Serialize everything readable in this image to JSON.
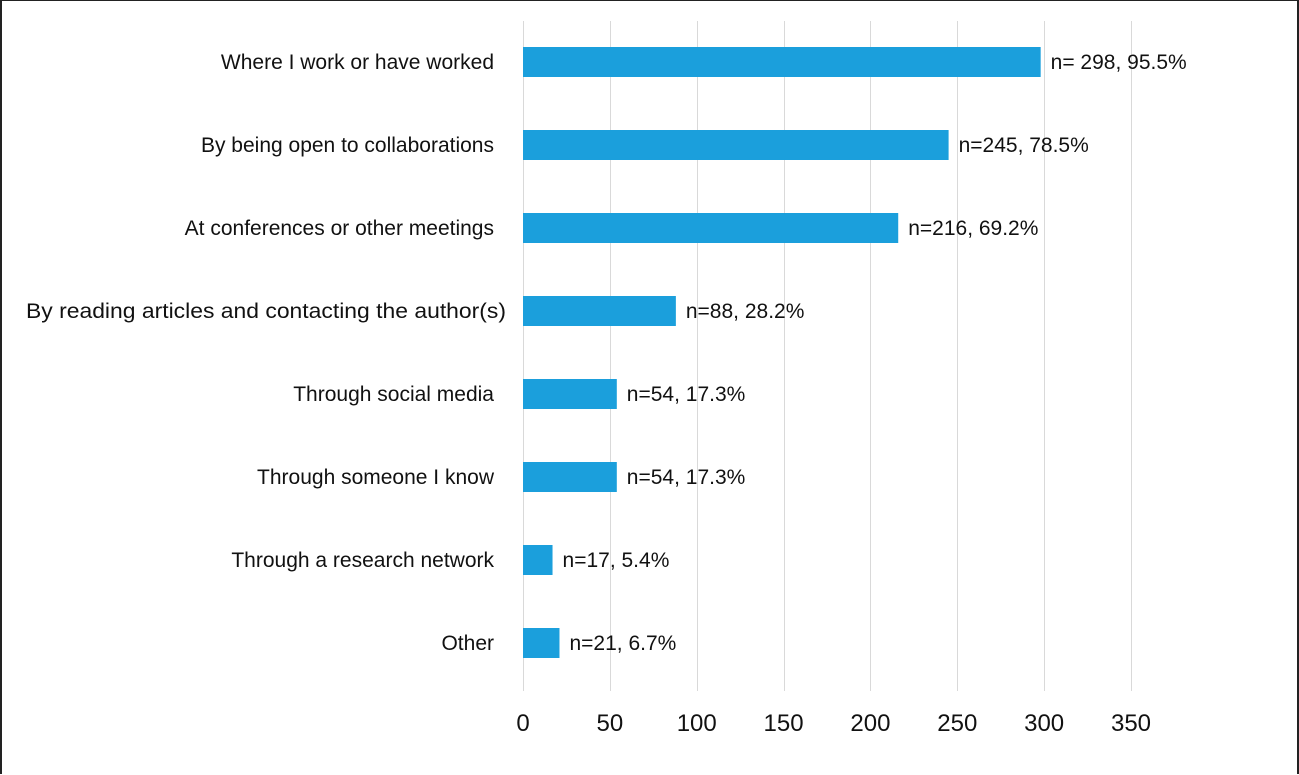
{
  "chart_data": {
    "type": "bar",
    "orientation": "horizontal",
    "title": "",
    "xlabel": "",
    "ylabel": "",
    "categories": [
      "Where I work or have worked",
      "By being open to collaborations",
      "At conferences or other meetings",
      "By reading articles and contacting the author(s)",
      "Through social media",
      "Through someone I know",
      "Through a research network",
      "Other"
    ],
    "values": [
      298,
      245,
      216,
      88,
      54,
      54,
      17,
      21
    ],
    "data_labels": [
      "n= 298, 95.5%",
      "n=245, 78.5%",
      "n=216, 69.2%",
      "n=88, 28.2%",
      "n=54, 17.3%",
      "n=54, 17.3%",
      "n=17, 5.4%",
      "n=21, 6.7%"
    ],
    "xlim": [
      0,
      350
    ],
    "xticks": [
      0,
      50,
      100,
      150,
      200,
      250,
      300,
      350
    ],
    "grid": "vertical",
    "legend": "none",
    "bar_color": "#1b9fdc"
  }
}
